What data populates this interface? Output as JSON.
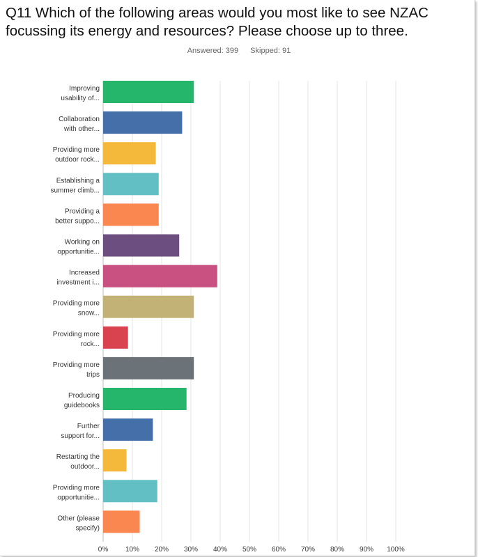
{
  "question": {
    "title": "Q11 Which of the following areas would you most like to see NZAC focussing its energy and resources? Please choose up to three.",
    "answered": "Answered: 399",
    "skipped": "Skipped: 91"
  },
  "chart_data": {
    "type": "bar",
    "orientation": "horizontal",
    "grid": true,
    "xlim": [
      0,
      100
    ],
    "x_ticks": [
      "0%",
      "10%",
      "20%",
      "30%",
      "40%",
      "50%",
      "60%",
      "70%",
      "80%",
      "90%",
      "100%"
    ],
    "categories": [
      [
        "Improving",
        "usability of..."
      ],
      [
        "Collaboration",
        "with other..."
      ],
      [
        "Providing more",
        "outdoor rock..."
      ],
      [
        "Establishing a",
        "summer climb..."
      ],
      [
        "Providing a",
        "better suppo..."
      ],
      [
        "Working on",
        "opportunitie..."
      ],
      [
        "Increased",
        "investment i..."
      ],
      [
        "Providing more",
        "snow..."
      ],
      [
        "Providing more",
        "rock..."
      ],
      [
        "Providing more",
        "trips"
      ],
      [
        "Producing",
        "guidebooks"
      ],
      [
        "Further",
        "support for..."
      ],
      [
        "Restarting the",
        "outdoor..."
      ],
      [
        "Providing more",
        "opportunitie..."
      ],
      [
        "Other (please",
        "specify)"
      ]
    ],
    "values": [
      31,
      27,
      18,
      19,
      19,
      26,
      39,
      31,
      8.5,
      31,
      28.5,
      17,
      8,
      18.5,
      12.5
    ],
    "colors": [
      "#25b56b",
      "#456fa8",
      "#f4b83a",
      "#62bfc3",
      "#fa8750",
      "#6c4f80",
      "#c85181",
      "#c3b275",
      "#d8434f",
      "#6b7378",
      "#25b56b",
      "#456fa8",
      "#f4b83a",
      "#62bfc3",
      "#fa8750"
    ]
  }
}
